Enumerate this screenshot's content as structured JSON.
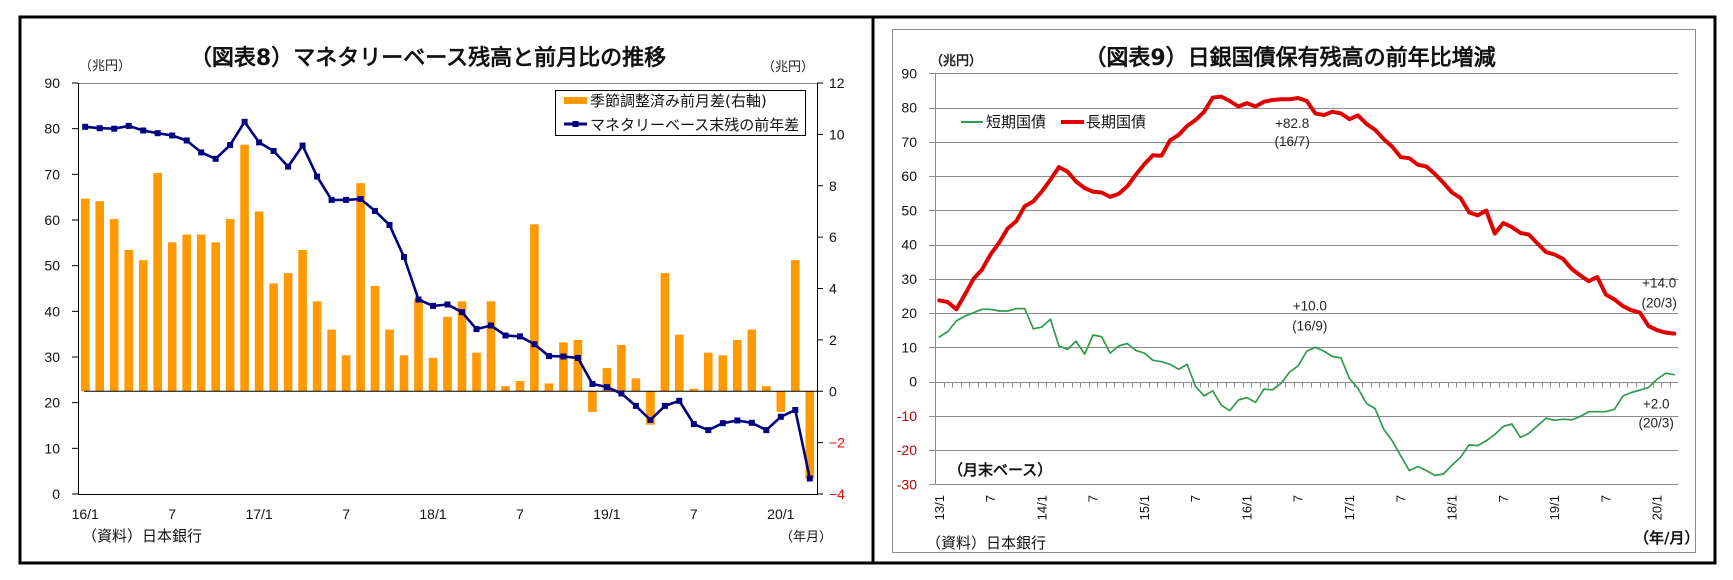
{
  "page": {
    "background_color": "#FFFFFF",
    "frame_color": "#000000"
  },
  "chart_data": [
    {
      "type": "bar+line",
      "title": "（図表8）マネタリーベース残高と前月比の推移",
      "source": "（資料）日本銀行",
      "xlabel": "（年月）",
      "categories": [
        "16/1",
        "16/2",
        "16/3",
        "16/4",
        "16/5",
        "16/6",
        "16/7",
        "16/8",
        "16/9",
        "16/10",
        "16/11",
        "16/12",
        "17/1",
        "17/2",
        "17/3",
        "17/4",
        "17/5",
        "17/6",
        "17/7",
        "17/8",
        "17/9",
        "17/10",
        "17/11",
        "17/12",
        "18/1",
        "18/2",
        "18/3",
        "18/4",
        "18/5",
        "18/6",
        "18/7",
        "18/8",
        "18/9",
        "18/10",
        "18/11",
        "18/12",
        "19/1",
        "19/2",
        "19/3",
        "19/4",
        "19/5",
        "19/6",
        "19/7",
        "19/8",
        "19/9",
        "19/10",
        "19/11",
        "19/12",
        "20/1",
        "20/2",
        "20/3"
      ],
      "x_tick_labels": [
        {
          "index": 0,
          "label": "16/1"
        },
        {
          "index": 6,
          "label": "7"
        },
        {
          "index": 12,
          "label": "17/1"
        },
        {
          "index": 18,
          "label": "7"
        },
        {
          "index": 24,
          "label": "18/1"
        },
        {
          "index": 30,
          "label": "7"
        },
        {
          "index": 36,
          "label": "19/1"
        },
        {
          "index": 42,
          "label": "7"
        },
        {
          "index": 48,
          "label": "20/1"
        }
      ],
      "left_axis": {
        "unit": "（兆円）",
        "min": 0,
        "max": 90,
        "step": 10,
        "labels": [
          "0",
          "10",
          "20",
          "30",
          "40",
          "50",
          "60",
          "70",
          "80",
          "90"
        ]
      },
      "right_axis": {
        "unit": "（兆円）",
        "min": -4,
        "max": 12,
        "step": 2,
        "labels": [
          "−4",
          "−2",
          "0",
          "2",
          "4",
          "6",
          "8",
          "10",
          "12"
        ]
      },
      "negative_label_color": "#FF0000",
      "grid": false,
      "legend_position": "top-right",
      "series": [
        {
          "name": "季節調整済み前月差(右軸)",
          "type": "bar",
          "axis": "right",
          "color": "#FF9900",
          "values": [
            7.5,
            7.4,
            6.7,
            5.5,
            5.1,
            8.5,
            5.8,
            6.1,
            6.1,
            5.8,
            6.7,
            9.6,
            7.0,
            4.2,
            4.6,
            5.5,
            3.5,
            2.4,
            1.4,
            8.1,
            4.1,
            2.4,
            1.4,
            3.6,
            1.3,
            2.9,
            3.5,
            1.5,
            3.5,
            0.2,
            0.4,
            6.5,
            0.3,
            1.9,
            2.0,
            -0.8,
            0.9,
            1.8,
            0.5,
            -1.3,
            4.6,
            2.2,
            0.1,
            1.5,
            1.4,
            2.0,
            2.4,
            0.2,
            -0.8,
            5.1,
            -3.4
          ]
        },
        {
          "name": "マネタリーベース末残の前年差",
          "type": "line",
          "axis": "left",
          "marker": "square",
          "color": "#000080",
          "values": [
            80.4,
            80.1,
            80.0,
            80.6,
            79.6,
            79.0,
            78.5,
            77.4,
            74.8,
            73.4,
            76.4,
            81.5,
            77.0,
            75.1,
            71.7,
            76.3,
            69.5,
            64.4,
            64.4,
            64.6,
            62.0,
            58.9,
            51.9,
            42.6,
            41.2,
            41.5,
            39.8,
            36.1,
            36.9,
            34.7,
            34.5,
            32.8,
            30.2,
            30.1,
            29.8,
            24.1,
            23.4,
            22.0,
            19.3,
            16.2,
            19.3,
            20.4,
            15.3,
            14.0,
            15.5,
            16.1,
            15.6,
            14.0,
            16.9,
            18.4,
            3.4
          ]
        }
      ]
    },
    {
      "type": "line",
      "title": "（図表9）日銀国債保有残高の前年比増減",
      "note": "（月末ベース）",
      "source": "（資料）日本銀行",
      "xlabel": "（年/月）",
      "categories": [
        "13/1",
        "13/2",
        "13/3",
        "13/4",
        "13/5",
        "13/6",
        "13/7",
        "13/8",
        "13/9",
        "13/10",
        "13/11",
        "13/12",
        "14/1",
        "14/2",
        "14/3",
        "14/4",
        "14/5",
        "14/6",
        "14/7",
        "14/8",
        "14/9",
        "14/10",
        "14/11",
        "14/12",
        "15/1",
        "15/2",
        "15/3",
        "15/4",
        "15/5",
        "15/6",
        "15/7",
        "15/8",
        "15/9",
        "15/10",
        "15/11",
        "15/12",
        "16/1",
        "16/2",
        "16/3",
        "16/4",
        "16/5",
        "16/6",
        "16/7",
        "16/8",
        "16/9",
        "16/10",
        "16/11",
        "16/12",
        "17/1",
        "17/2",
        "17/3",
        "17/4",
        "17/5",
        "17/6",
        "17/7",
        "17/8",
        "17/9",
        "17/10",
        "17/11",
        "17/12",
        "18/1",
        "18/2",
        "18/3",
        "18/4",
        "18/5",
        "18/6",
        "18/7",
        "18/8",
        "18/9",
        "18/10",
        "18/11",
        "18/12",
        "19/1",
        "19/2",
        "19/3",
        "19/4",
        "19/5",
        "19/6",
        "19/7",
        "19/8",
        "19/9",
        "19/10",
        "19/11",
        "19/12",
        "20/1",
        "20/2",
        "20/3"
      ],
      "x_tick_labels": [
        {
          "index": 0,
          "label": "13/1"
        },
        {
          "index": 6,
          "label": "7"
        },
        {
          "index": 12,
          "label": "14/1"
        },
        {
          "index": 18,
          "label": "7"
        },
        {
          "index": 24,
          "label": "15/1"
        },
        {
          "index": 30,
          "label": "7"
        },
        {
          "index": 36,
          "label": "16/1"
        },
        {
          "index": 42,
          "label": "7"
        },
        {
          "index": 48,
          "label": "17/1"
        },
        {
          "index": 54,
          "label": "7"
        },
        {
          "index": 60,
          "label": "18/1"
        },
        {
          "index": 66,
          "label": "7"
        },
        {
          "index": 72,
          "label": "19/1"
        },
        {
          "index": 78,
          "label": "7"
        },
        {
          "index": 84,
          "label": "20/1"
        }
      ],
      "y_axis": {
        "unit": "（兆円）",
        "min": -30,
        "max": 90,
        "step": 10,
        "labels": [
          "-30",
          "-20",
          "-10",
          "0",
          "10",
          "20",
          "30",
          "40",
          "50",
          "60",
          "70",
          "80",
          "90"
        ]
      },
      "negative_label_color": "#C00000",
      "grid": true,
      "legend_position": "top-left",
      "series": [
        {
          "name": "短期国債",
          "color": "#2E9B4E",
          "values": [
            13.0,
            14.6,
            17.7,
            19.1,
            20.1,
            21.1,
            21.1,
            20.6,
            20.6,
            21.3,
            21.3,
            15.4,
            15.9,
            18.2,
            10.4,
            9.4,
            11.8,
            8.0,
            13.6,
            13.1,
            8.3,
            10.4,
            11.1,
            9.1,
            8.3,
            6.2,
            5.8,
            5.0,
            3.6,
            5.0,
            -1.5,
            -4.2,
            -2.7,
            -6.9,
            -8.5,
            -5.4,
            -4.7,
            -6.1,
            -2.2,
            -2.4,
            -0.5,
            2.8,
            4.6,
            8.9,
            10.0,
            8.9,
            7.3,
            6.9,
            0.9,
            -2.0,
            -6.4,
            -7.9,
            -13.9,
            -17.3,
            -21.7,
            -26.0,
            -24.8,
            -26.0,
            -27.4,
            -27.0,
            -24.4,
            -22.1,
            -18.5,
            -18.7,
            -17.3,
            -15.5,
            -13.1,
            -12.4,
            -16.3,
            -15.1,
            -12.9,
            -10.7,
            -11.3,
            -11.0,
            -11.2,
            -10.2,
            -8.8,
            -8.8,
            -8.8,
            -8.1,
            -4.2,
            -3.2,
            -2.5,
            -1.7,
            0.7,
            2.4,
            2.0
          ]
        },
        {
          "name": "長期国債",
          "color": "#E00000",
          "values": [
            23.7,
            23.2,
            21.1,
            25.4,
            30.0,
            32.7,
            37.1,
            40.5,
            44.7,
            46.8,
            51.2,
            52.6,
            55.5,
            58.9,
            62.6,
            61.3,
            58.4,
            56.5,
            55.4,
            55.2,
            53.9,
            54.8,
            57.0,
            60.4,
            63.5,
            66.1,
            65.9,
            70.4,
            72.0,
            74.6,
            76.4,
            78.8,
            82.9,
            83.2,
            81.9,
            80.3,
            81.3,
            80.3,
            81.7,
            82.2,
            82.4,
            82.4,
            82.8,
            81.9,
            78.3,
            77.8,
            78.8,
            78.3,
            76.6,
            77.7,
            75.2,
            73.5,
            70.8,
            68.6,
            65.5,
            65.2,
            63.3,
            62.8,
            60.6,
            58.0,
            55.2,
            53.6,
            49.4,
            48.5,
            49.9,
            43.2,
            46.3,
            45.1,
            43.4,
            42.9,
            40.3,
            37.8,
            37.1,
            35.8,
            32.9,
            31.0,
            29.3,
            30.5,
            25.4,
            24.0,
            22.0,
            20.8,
            20.1,
            16.2,
            15.0,
            14.3,
            14.0
          ]
        }
      ],
      "annotations": [
        {
          "series": "長期国債",
          "category": "16/7",
          "value_text": "+82.8",
          "date_text": "(16/7)"
        },
        {
          "series": "短期国債",
          "category": "16/9",
          "value_text": "+10.0",
          "date_text": "(16/9)"
        },
        {
          "series": "長期国債",
          "category": "20/3",
          "value_text": "+14.0",
          "date_text": "(20/3)"
        },
        {
          "series": "短期国債",
          "category": "20/3",
          "value_text": "+2.0",
          "date_text": "(20/3)"
        }
      ]
    }
  ]
}
